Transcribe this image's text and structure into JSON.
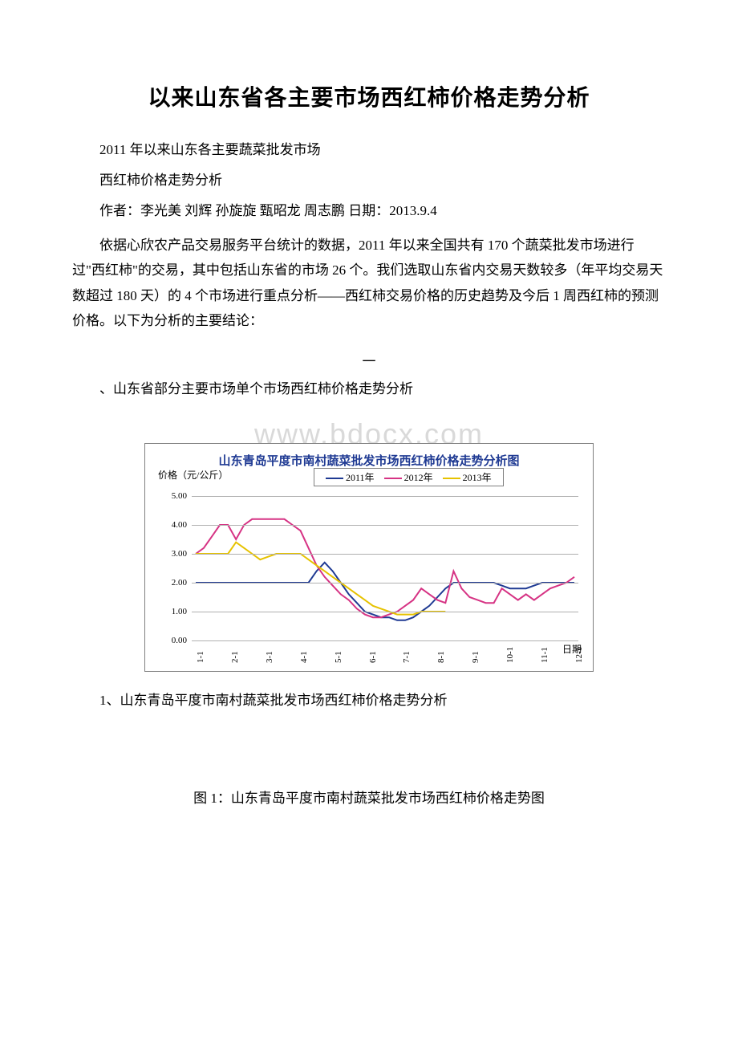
{
  "title": "以来山东省各主要市场西红柿价格走势分析",
  "line1": "2011 年以来山东各主要蔬菜批发市场",
  "line2": "西红柿价格走势分析",
  "line3": "作者：李光美 刘辉 孙旋旋 甄昭龙 周志鹏 日期：2013.9.4",
  "para1": "依据心欣农产品交易服务平台统计的数据，2011 年以来全国共有 170 个蔬菜批发市场进行过\"西红柿\"的交易，其中包括山东省的市场 26 个。我们选取山东省内交易天数较多（年平均交易天数超过 180 天）的 4 个市场进行重点分析——西红柿交易价格的历史趋势及今后 1 周西红柿的预测价格。以下为分析的主要结论：",
  "section_num": "一",
  "section_line": "、山东省部分主要市场单个市场西红柿价格走势分析",
  "watermark": "www.bdocx.com",
  "chart": {
    "type": "line",
    "title": "山东青岛平度市南村蔬菜批发市场西红柿价格走势分析图",
    "y_axis_title": "价格（元/公斤）",
    "x_axis_title": "日期",
    "title_color": "#1f3a93",
    "background_color": "#ffffff",
    "border_color": "#7f7f7f",
    "grid_color": "#b0b0b0",
    "ylim": [
      0,
      5
    ],
    "ytick_step": 1,
    "y_labels": [
      "0.00",
      "1.00",
      "2.00",
      "3.00",
      "4.00",
      "5.00"
    ],
    "x_labels": [
      "1-1",
      "2-1",
      "3-1",
      "4-1",
      "5-1",
      "6-1",
      "7-1",
      "8-1",
      "9-1",
      "10-1",
      "11-1",
      "12-1"
    ],
    "series": [
      {
        "name": "2011年",
        "color": "#1f3a93",
        "values": [
          2.0,
          2.0,
          2.0,
          2.0,
          2.0,
          2.0,
          2.0,
          2.0,
          2.0,
          2.0,
          2.0,
          2.0,
          2.0,
          2.0,
          2.0,
          2.4,
          2.7,
          2.4,
          2.0,
          1.6,
          1.3,
          1.0,
          0.9,
          0.8,
          0.8,
          0.7,
          0.7,
          0.8,
          1.0,
          1.2,
          1.5,
          1.8,
          2.0,
          2.0,
          2.0,
          2.0,
          2.0,
          2.0,
          1.9,
          1.8,
          1.8,
          1.8,
          1.9,
          2.0,
          2.0,
          2.0,
          2.0,
          2.0
        ]
      },
      {
        "name": "2012年",
        "color": "#d63384",
        "values": [
          3.0,
          3.2,
          3.6,
          4.0,
          4.0,
          3.5,
          4.0,
          4.2,
          4.2,
          4.2,
          4.2,
          4.2,
          4.0,
          3.8,
          3.2,
          2.6,
          2.2,
          1.9,
          1.6,
          1.4,
          1.1,
          0.9,
          0.8,
          0.8,
          0.9,
          1.0,
          1.2,
          1.4,
          1.8,
          1.6,
          1.4,
          1.3,
          2.4,
          1.8,
          1.5,
          1.4,
          1.3,
          1.3,
          1.8,
          1.6,
          1.4,
          1.6,
          1.4,
          1.6,
          1.8,
          1.9,
          2.0,
          2.2
        ]
      },
      {
        "name": "2013年",
        "color": "#e6c200",
        "values": [
          3.0,
          3.0,
          3.0,
          3.0,
          3.0,
          3.4,
          3.2,
          3.0,
          2.8,
          2.9,
          3.0,
          3.0,
          3.0,
          3.0,
          2.8,
          2.6,
          2.4,
          2.2,
          2.0,
          1.8,
          1.6,
          1.4,
          1.2,
          1.1,
          1.0,
          0.9,
          0.9,
          0.9,
          1.0,
          1.0,
          1.0,
          1.0,
          null,
          null,
          null,
          null,
          null,
          null,
          null,
          null,
          null,
          null,
          null,
          null,
          null,
          null,
          null,
          null
        ]
      }
    ]
  },
  "caption1": "1、山东青岛平度市南村蔬菜批发市场西红柿价格走势分析",
  "fig_caption": "图 1：山东青岛平度市南村蔬菜批发市场西红柿价格走势图"
}
